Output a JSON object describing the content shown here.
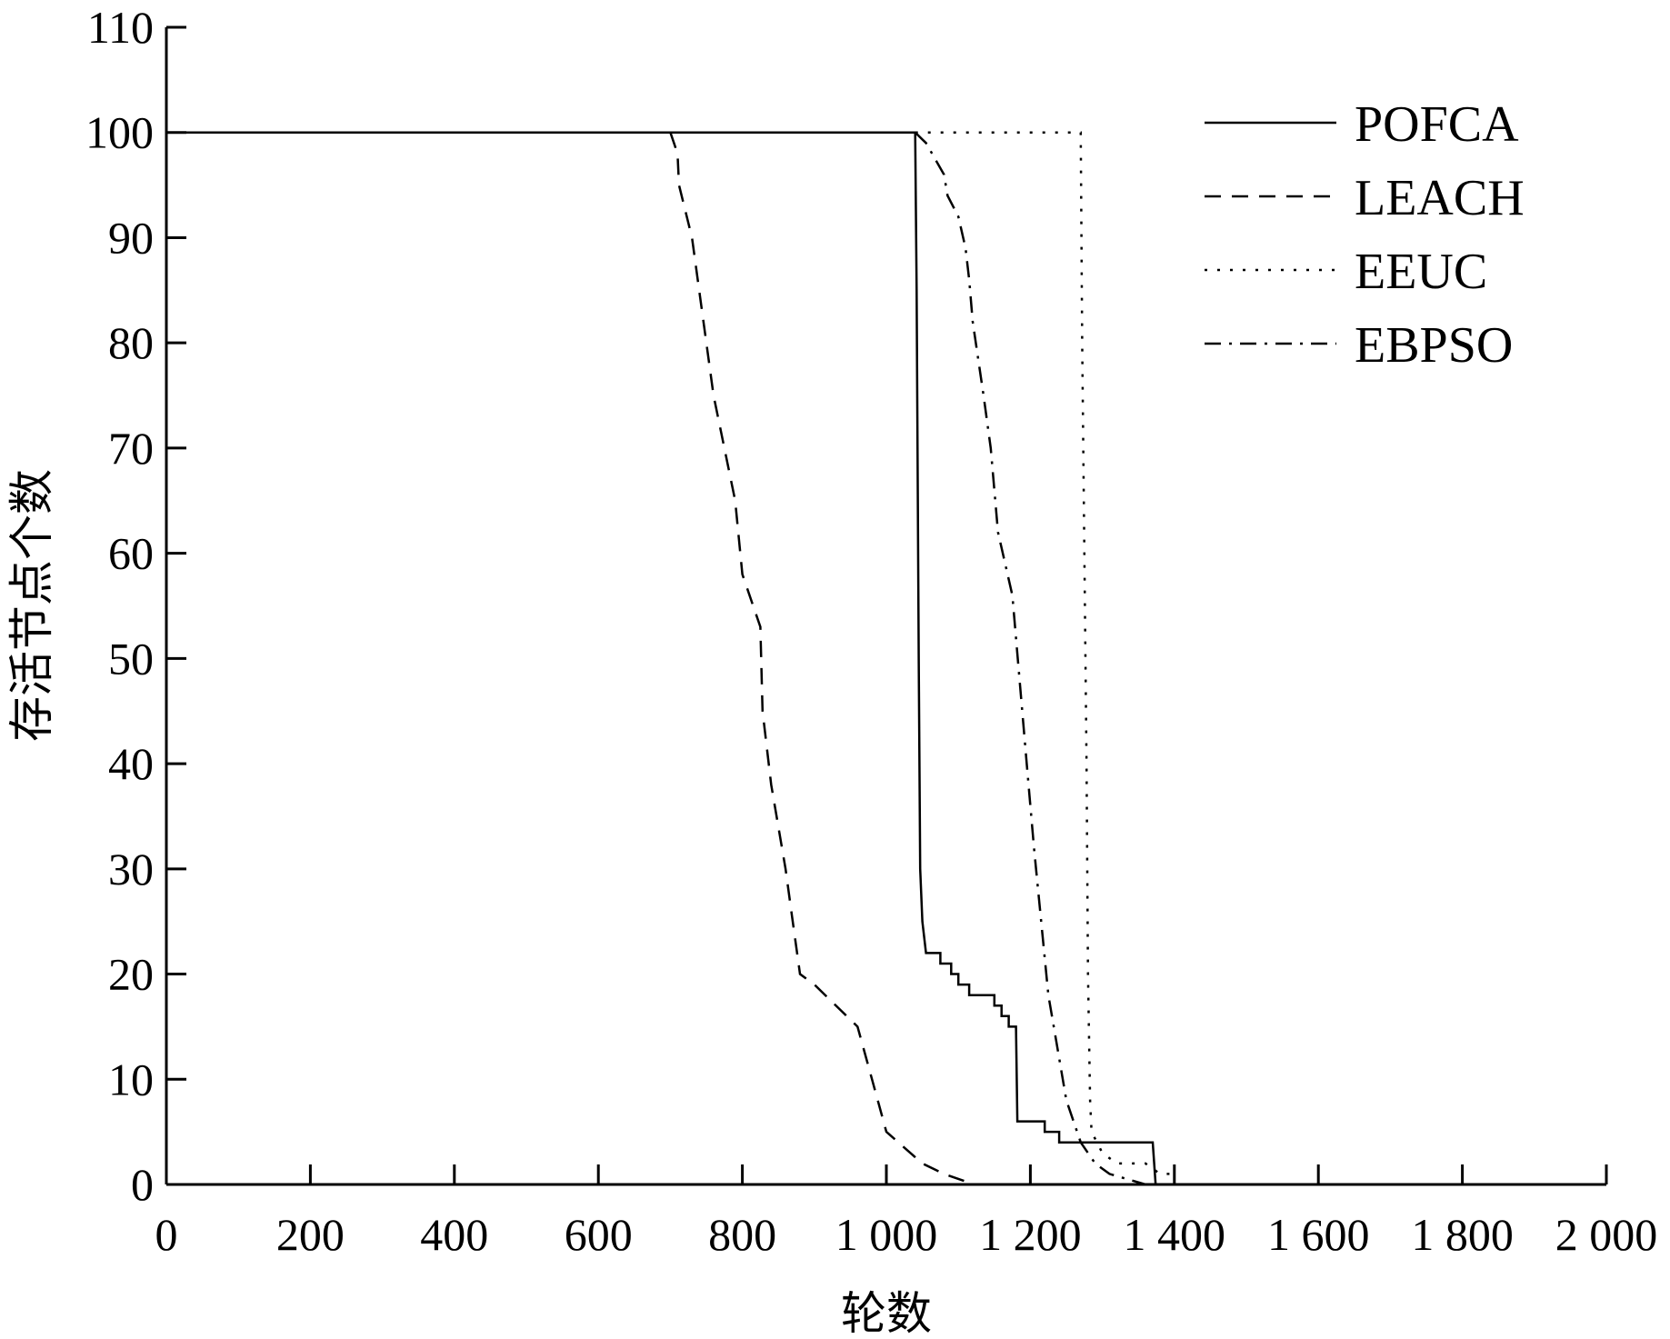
{
  "chart_data": {
    "type": "line",
    "title": "",
    "xlabel": "轮数",
    "ylabel": "存活节点个数",
    "xlim": [
      0,
      2000
    ],
    "ylim": [
      0,
      110
    ],
    "x_ticks": [
      0,
      200,
      400,
      600,
      800,
      1000,
      1200,
      1400,
      1600,
      1800,
      2000
    ],
    "x_tick_labels": [
      "0",
      "200",
      "400",
      "600",
      "800",
      "1 000",
      "1 200",
      "1 400",
      "1 600",
      "1 800",
      "2 000"
    ],
    "y_ticks": [
      0,
      10,
      20,
      30,
      40,
      50,
      60,
      70,
      80,
      90,
      100,
      110
    ],
    "y_tick_labels": [
      "0",
      "10",
      "20",
      "30",
      "40",
      "50",
      "60",
      "70",
      "80",
      "90",
      "100",
      "110"
    ],
    "grid": false,
    "legend_position": "top-right",
    "series": [
      {
        "name": "POFCA",
        "style": "solid",
        "color": "#000000",
        "points": [
          [
            0,
            100
          ],
          [
            1040,
            100
          ],
          [
            1042,
            85
          ],
          [
            1045,
            50
          ],
          [
            1047,
            30
          ],
          [
            1050,
            25
          ],
          [
            1055,
            22
          ],
          [
            1075,
            22
          ],
          [
            1075,
            21
          ],
          [
            1090,
            21
          ],
          [
            1090,
            20
          ],
          [
            1100,
            20
          ],
          [
            1100,
            19
          ],
          [
            1115,
            19
          ],
          [
            1115,
            18
          ],
          [
            1150,
            18
          ],
          [
            1150,
            17
          ],
          [
            1160,
            17
          ],
          [
            1160,
            16
          ],
          [
            1170,
            16
          ],
          [
            1170,
            15
          ],
          [
            1180,
            15
          ],
          [
            1182,
            6
          ],
          [
            1220,
            6
          ],
          [
            1220,
            5
          ],
          [
            1240,
            5
          ],
          [
            1240,
            4
          ],
          [
            1370,
            4
          ],
          [
            1372,
            2
          ],
          [
            1374,
            0
          ]
        ]
      },
      {
        "name": "LEACH",
        "style": "dashed",
        "color": "#000000",
        "points": [
          [
            700,
            100
          ],
          [
            710,
            98
          ],
          [
            712,
            95
          ],
          [
            730,
            90
          ],
          [
            750,
            80
          ],
          [
            760,
            75
          ],
          [
            790,
            65
          ],
          [
            800,
            58
          ],
          [
            825,
            53
          ],
          [
            828,
            45
          ],
          [
            840,
            38
          ],
          [
            860,
            30
          ],
          [
            870,
            25
          ],
          [
            880,
            20
          ],
          [
            900,
            19
          ],
          [
            960,
            15
          ],
          [
            980,
            10
          ],
          [
            1000,
            5
          ],
          [
            1050,
            2
          ],
          [
            1080,
            1
          ],
          [
            1122,
            0
          ]
        ]
      },
      {
        "name": "EEUC",
        "style": "dotted",
        "color": "#000000",
        "points": [
          [
            1040,
            100
          ],
          [
            1270,
            100
          ],
          [
            1272,
            80
          ],
          [
            1275,
            60
          ],
          [
            1278,
            40
          ],
          [
            1280,
            20
          ],
          [
            1283,
            8
          ],
          [
            1285,
            5
          ],
          [
            1300,
            3
          ],
          [
            1320,
            2
          ],
          [
            1360,
            2
          ],
          [
            1380,
            1
          ],
          [
            1400,
            1
          ]
        ]
      },
      {
        "name": "EBPSO",
        "style": "dashdot",
        "color": "#000000",
        "points": [
          [
            1040,
            100
          ],
          [
            1055,
            99
          ],
          [
            1080,
            96
          ],
          [
            1085,
            94
          ],
          [
            1100,
            92
          ],
          [
            1110,
            89
          ],
          [
            1115,
            86
          ],
          [
            1120,
            82
          ],
          [
            1135,
            75
          ],
          [
            1145,
            70
          ],
          [
            1155,
            62
          ],
          [
            1175,
            56
          ],
          [
            1185,
            48
          ],
          [
            1195,
            40
          ],
          [
            1205,
            32
          ],
          [
            1215,
            25
          ],
          [
            1225,
            18
          ],
          [
            1240,
            12
          ],
          [
            1250,
            8
          ],
          [
            1260,
            6
          ],
          [
            1270,
            4
          ],
          [
            1290,
            2
          ],
          [
            1310,
            1
          ],
          [
            1360,
            0
          ]
        ]
      }
    ]
  }
}
